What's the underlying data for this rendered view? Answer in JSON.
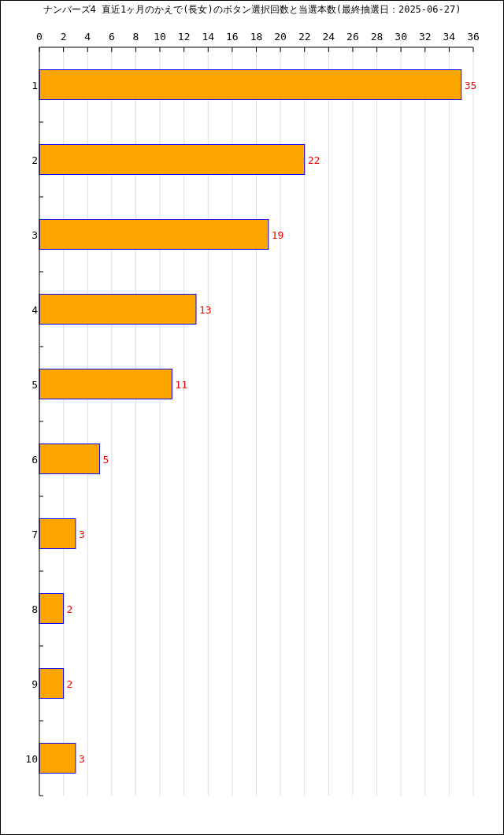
{
  "chart_data": {
    "type": "bar",
    "orientation": "horizontal",
    "title": "ナンバーズ4 直近1ヶ月のかえで(長女)のボタン選択回数と当選本数(最終抽選日：2025-06-27)",
    "categories": [
      "1",
      "2",
      "3",
      "4",
      "5",
      "6",
      "7",
      "8",
      "9",
      "10"
    ],
    "series": [
      {
        "color": "#ffa500",
        "values": [
          35,
          22,
          19,
          13,
          11,
          5,
          3,
          2,
          2,
          3
        ]
      }
    ],
    "xlim": [
      0,
      36
    ],
    "xticks": [
      0,
      2,
      4,
      6,
      8,
      10,
      12,
      14,
      16,
      18,
      20,
      22,
      24,
      26,
      28,
      30,
      32,
      34,
      36
    ],
    "grid": "x",
    "data_labels": true
  }
}
